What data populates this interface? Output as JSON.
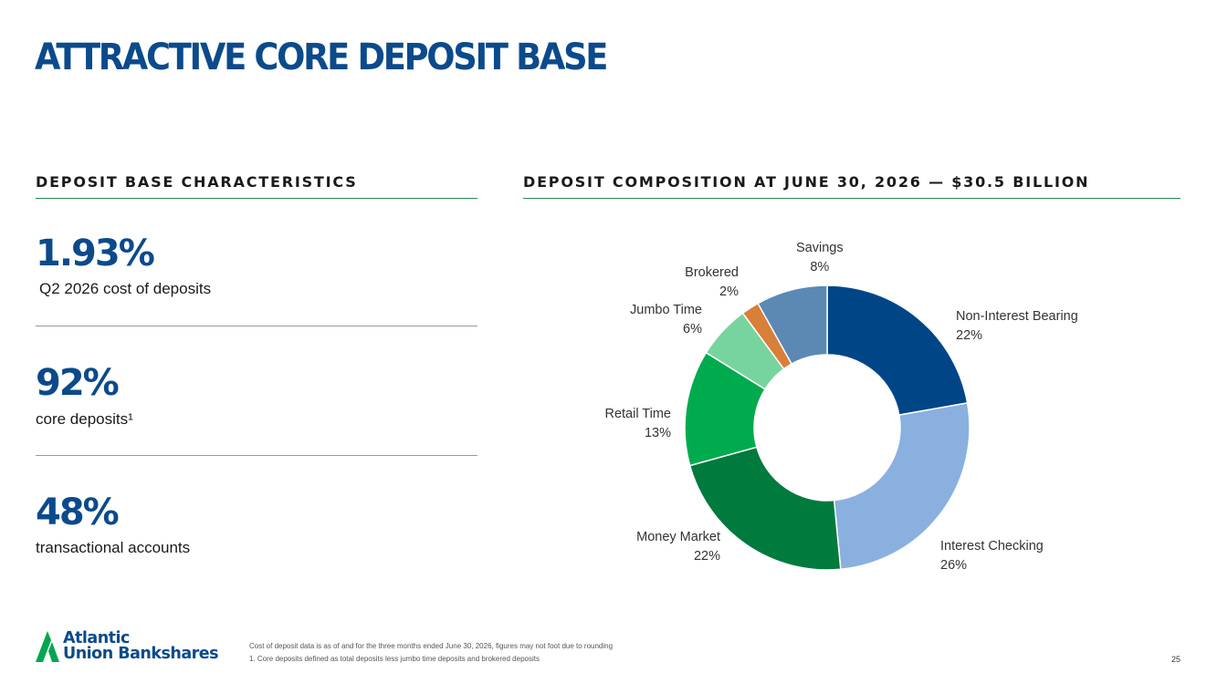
{
  "title": "ATTRACTIVE CORE DEPOSIT BASE",
  "left_section": {
    "heading": "DEPOSIT BASE CHARACTERISTICS",
    "stats": [
      {
        "value": "1.93%",
        "label": "Q2 2026 cost of deposits"
      },
      {
        "value": "92%",
        "label": "core deposits¹"
      },
      {
        "value": "48%",
        "label": "transactional accounts"
      }
    ]
  },
  "right_section": {
    "heading": "DEPOSIT COMPOSITION AT JUNE 30, 2026 — $30.5 BILLION"
  },
  "chart_data": {
    "type": "pie",
    "donut": true,
    "slices": [
      {
        "name": "Non-Interest Bearing",
        "value": 22,
        "label": "22%",
        "color": "#004687"
      },
      {
        "name": "Interest Checking",
        "value": 26,
        "label": "26%",
        "color": "#8ab0e0"
      },
      {
        "name": "Money Market",
        "value": 22,
        "label": "22%",
        "color": "#007a3d"
      },
      {
        "name": "Retail Time",
        "value": 13,
        "label": "13%",
        "color": "#00ab4e"
      },
      {
        "name": "Jumbo Time",
        "value": 6,
        "label": "6%",
        "color": "#78d49e"
      },
      {
        "name": "Brokered",
        "value": 2,
        "label": "2%",
        "color": "#d87f3a"
      },
      {
        "name": "Savings",
        "value": 8,
        "label": "8%",
        "color": "#5b89b3"
      }
    ]
  },
  "logo": {
    "line1": "Atlantic",
    "line2": "Union Bankshares",
    "color": "#0b4a8b",
    "accent": "#00a651"
  },
  "footnotes": [
    "Cost of deposit data is as of and for the three months ended June 30, 2026, figures may not foot due to rounding",
    "1. Core deposits defined as total deposits less jumbo time deposits and brokered deposits"
  ],
  "page_number": "25"
}
